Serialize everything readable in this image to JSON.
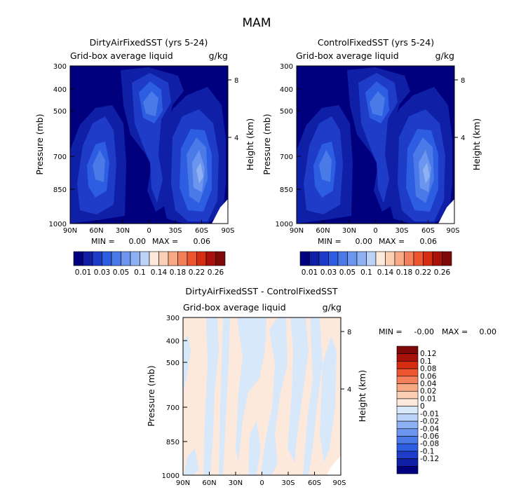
{
  "figure": {
    "title": "MAM"
  },
  "panels": [
    {
      "title": "DirtyAirFixedSST (yrs 5-24)",
      "variable": "Grid-box average liquid",
      "units": "g/kg",
      "ylabel": "Pressure (mb)",
      "ylabel_right": "Height (km)",
      "min_label": "MIN =",
      "min_value": "0.00",
      "max_label": "MAX =",
      "max_value": "0.06"
    },
    {
      "title": "ControlFixedSST (yrs 5-24)",
      "variable": "Grid-box average liquid",
      "units": "g/kg",
      "ylabel": "Pressure (mb)",
      "ylabel_right": "Height (km)",
      "min_label": "MIN =",
      "min_value": "0.00",
      "max_label": "MAX =",
      "max_value": "0.06"
    },
    {
      "title": "DirtyAirFixedSST - ControlFixedSST",
      "variable": "Grid-box average liquid",
      "units": "g/kg",
      "ylabel": "Pressure (mb)",
      "ylabel_right": "Height (km)",
      "min_label": "MIN =",
      "min_value": "-0.00",
      "max_label": "MAX =",
      "max_value": "0.00"
    }
  ],
  "colors": {
    "abs_scale": [
      "#00007f",
      "#0f1fa6",
      "#1e3cc8",
      "#2d5de0",
      "#4a7ae8",
      "#6b95ef",
      "#8eb1f4",
      "#bcd3f8",
      "#fde9dc",
      "#fbd0b5",
      "#f8aa85",
      "#f4805b",
      "#ec5530",
      "#d62d12",
      "#a8110b",
      "#7e0707"
    ],
    "diff_scale": [
      "#00007f",
      "#0f1fa6",
      "#1e3cc8",
      "#2d5de0",
      "#4a7ae8",
      "#6b95ef",
      "#8eb1f4",
      "#bcd3f8",
      "#d8e8fb",
      "#fde9dc",
      "#fbd0b5",
      "#f8aa85",
      "#f4805b",
      "#ec5530",
      "#d62d12",
      "#a8110b",
      "#7e0707"
    ]
  },
  "chart_data": [
    {
      "type": "heatmap",
      "title": "DirtyAirFixedSST (yrs 5-24)",
      "xlabel": "",
      "ylabel": "Pressure (mb)",
      "y2label": "Height (km)",
      "x_ticks": [
        "90N",
        "60N",
        "30N",
        "0",
        "30S",
        "60S",
        "90S"
      ],
      "y_ticks": [
        "300",
        "400",
        "500",
        "700",
        "850",
        "1000"
      ],
      "y2_ticks": [
        "8",
        "4"
      ],
      "ylim": [
        1000,
        300
      ],
      "colorbar_ticks": [
        "0.01",
        "0.03",
        "0.05",
        "0.1",
        "0.14",
        "0.18",
        "0.22",
        "0.26"
      ],
      "min": 0.0,
      "max": 0.06
    },
    {
      "type": "heatmap",
      "title": "ControlFixedSST (yrs 5-24)",
      "xlabel": "",
      "ylabel": "Pressure (mb)",
      "y2label": "Height (km)",
      "x_ticks": [
        "90N",
        "60N",
        "30N",
        "0",
        "30S",
        "60S",
        "90S"
      ],
      "y_ticks": [
        "300",
        "400",
        "500",
        "700",
        "850",
        "1000"
      ],
      "y2_ticks": [
        "8",
        "4"
      ],
      "ylim": [
        1000,
        300
      ],
      "colorbar_ticks": [
        "0.01",
        "0.03",
        "0.05",
        "0.1",
        "0.14",
        "0.18",
        "0.22",
        "0.26"
      ],
      "min": 0.0,
      "max": 0.06
    },
    {
      "type": "heatmap",
      "title": "DirtyAirFixedSST - ControlFixedSST",
      "xlabel": "",
      "ylabel": "Pressure (mb)",
      "y2label": "Height (km)",
      "x_ticks": [
        "90N",
        "60N",
        "30N",
        "0",
        "30S",
        "60S",
        "90S"
      ],
      "y_ticks": [
        "300",
        "400",
        "500",
        "700",
        "850",
        "1000"
      ],
      "y2_ticks": [
        "8",
        "4"
      ],
      "ylim": [
        1000,
        300
      ],
      "colorbar_ticks": [
        "0.12",
        "0.1",
        "0.08",
        "0.06",
        "0.04",
        "0.02",
        "0.01",
        "0",
        "-0.01",
        "-0.02",
        "-0.04",
        "-0.06",
        "-0.08",
        "-0.1",
        "-0.12"
      ],
      "min": -0.0,
      "max": 0.0
    }
  ]
}
